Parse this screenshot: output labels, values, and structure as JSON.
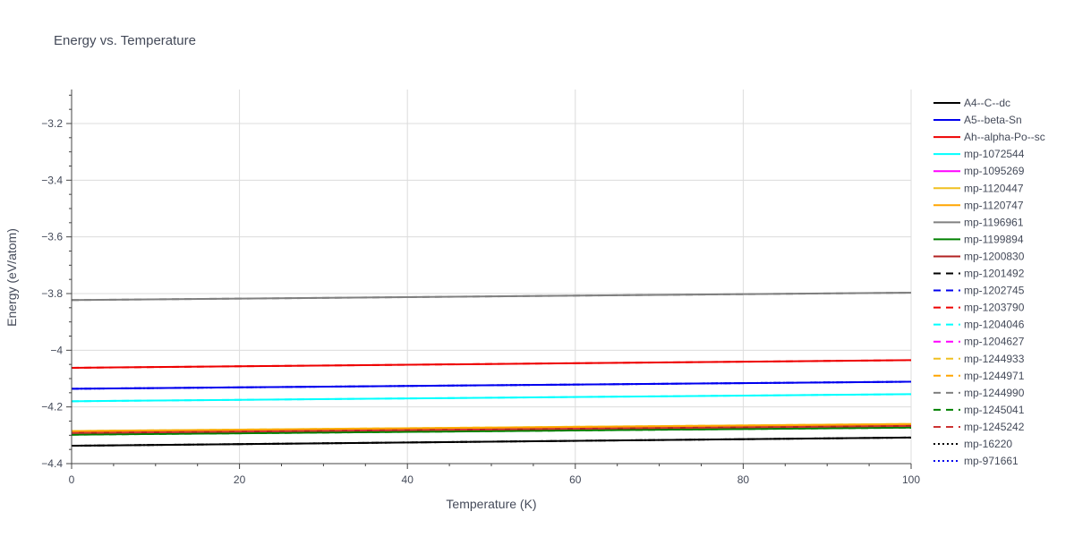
{
  "chart_data": {
    "type": "line",
    "title": "Energy vs. Temperature",
    "xlabel": "Temperature (K)",
    "ylabel": "Energy (eV/atom)",
    "xlim": [
      0,
      100
    ],
    "ylim": [
      -4.4,
      -3.08
    ],
    "x_ticks": [
      0,
      20,
      40,
      60,
      80,
      100
    ],
    "x_tick_labels": [
      "0",
      "20",
      "40",
      "60",
      "80",
      "100"
    ],
    "y_ticks": [
      -4.4,
      -4.2,
      -4,
      -3.8,
      -3.6,
      -3.4,
      -3.2
    ],
    "y_tick_labels": [
      "−4.4",
      "−4.2",
      "−4",
      "−3.8",
      "−3.6",
      "−3.4",
      "−3.2"
    ],
    "grid": true,
    "legend_position": "right",
    "x": [
      0,
      100
    ],
    "series": [
      {
        "name": "A4--C--dc",
        "color": "#000000",
        "dash": "solid",
        "values": [
          -4.337,
          -4.308
        ]
      },
      {
        "name": "A5--beta-Sn",
        "color": "#0000ee",
        "dash": "solid",
        "values": [
          -4.136,
          -4.111
        ]
      },
      {
        "name": "Ah--alpha-Po--sc",
        "color": "#ee0000",
        "dash": "solid",
        "values": [
          -4.062,
          -4.035
        ]
      },
      {
        "name": "mp-1072544",
        "color": "#00ffff",
        "dash": "solid",
        "values": [
          -4.18,
          -4.155
        ]
      },
      {
        "name": "mp-1095269",
        "color": "#ff00ff",
        "dash": "solid",
        "values": [
          -4.29,
          -4.265
        ]
      },
      {
        "name": "mp-1120447",
        "color": "#f0c020",
        "dash": "solid",
        "values": [
          -4.285,
          -4.26
        ]
      },
      {
        "name": "mp-1120747",
        "color": "#ffa500",
        "dash": "solid",
        "values": [
          -4.286,
          -4.262
        ]
      },
      {
        "name": "mp-1196961",
        "color": "#808080",
        "dash": "solid",
        "values": [
          -3.823,
          -3.797
        ]
      },
      {
        "name": "mp-1199894",
        "color": "#008000",
        "dash": "solid",
        "values": [
          -4.298,
          -4.273
        ]
      },
      {
        "name": "mp-1200830",
        "color": "#b22222",
        "dash": "solid",
        "values": [
          -4.292,
          -4.267
        ]
      },
      {
        "name": "mp-1201492",
        "color": "#000000",
        "dash": "dash",
        "values": [
          -4.337,
          -4.308
        ]
      },
      {
        "name": "mp-1202745",
        "color": "#0000ee",
        "dash": "dash",
        "values": [
          -4.136,
          -4.111
        ]
      },
      {
        "name": "mp-1203790",
        "color": "#ee0000",
        "dash": "dash",
        "values": [
          -4.062,
          -4.035
        ]
      },
      {
        "name": "mp-1204046",
        "color": "#00ffff",
        "dash": "dash",
        "values": [
          -4.18,
          -4.155
        ]
      },
      {
        "name": "mp-1204627",
        "color": "#ff00ff",
        "dash": "dash",
        "values": [
          -4.29,
          -4.265
        ]
      },
      {
        "name": "mp-1244933",
        "color": "#f0c020",
        "dash": "dash",
        "values": [
          -4.285,
          -4.26
        ]
      },
      {
        "name": "mp-1244971",
        "color": "#ffa500",
        "dash": "dash",
        "values": [
          -4.286,
          -4.262
        ]
      },
      {
        "name": "mp-1244990",
        "color": "#808080",
        "dash": "dash",
        "values": [
          -3.823,
          -3.797
        ]
      },
      {
        "name": "mp-1245041",
        "color": "#008000",
        "dash": "dash",
        "values": [
          -4.298,
          -4.273
        ]
      },
      {
        "name": "mp-1245242",
        "color": "#cc3333",
        "dash": "dash",
        "values": [
          -4.292,
          -4.267
        ]
      },
      {
        "name": "mp-16220",
        "color": "#000000",
        "dash": "dot",
        "values": [
          -4.337,
          -4.308
        ]
      },
      {
        "name": "mp-971661",
        "color": "#0000ee",
        "dash": "dot",
        "values": [
          -4.136,
          -4.111
        ]
      }
    ]
  }
}
